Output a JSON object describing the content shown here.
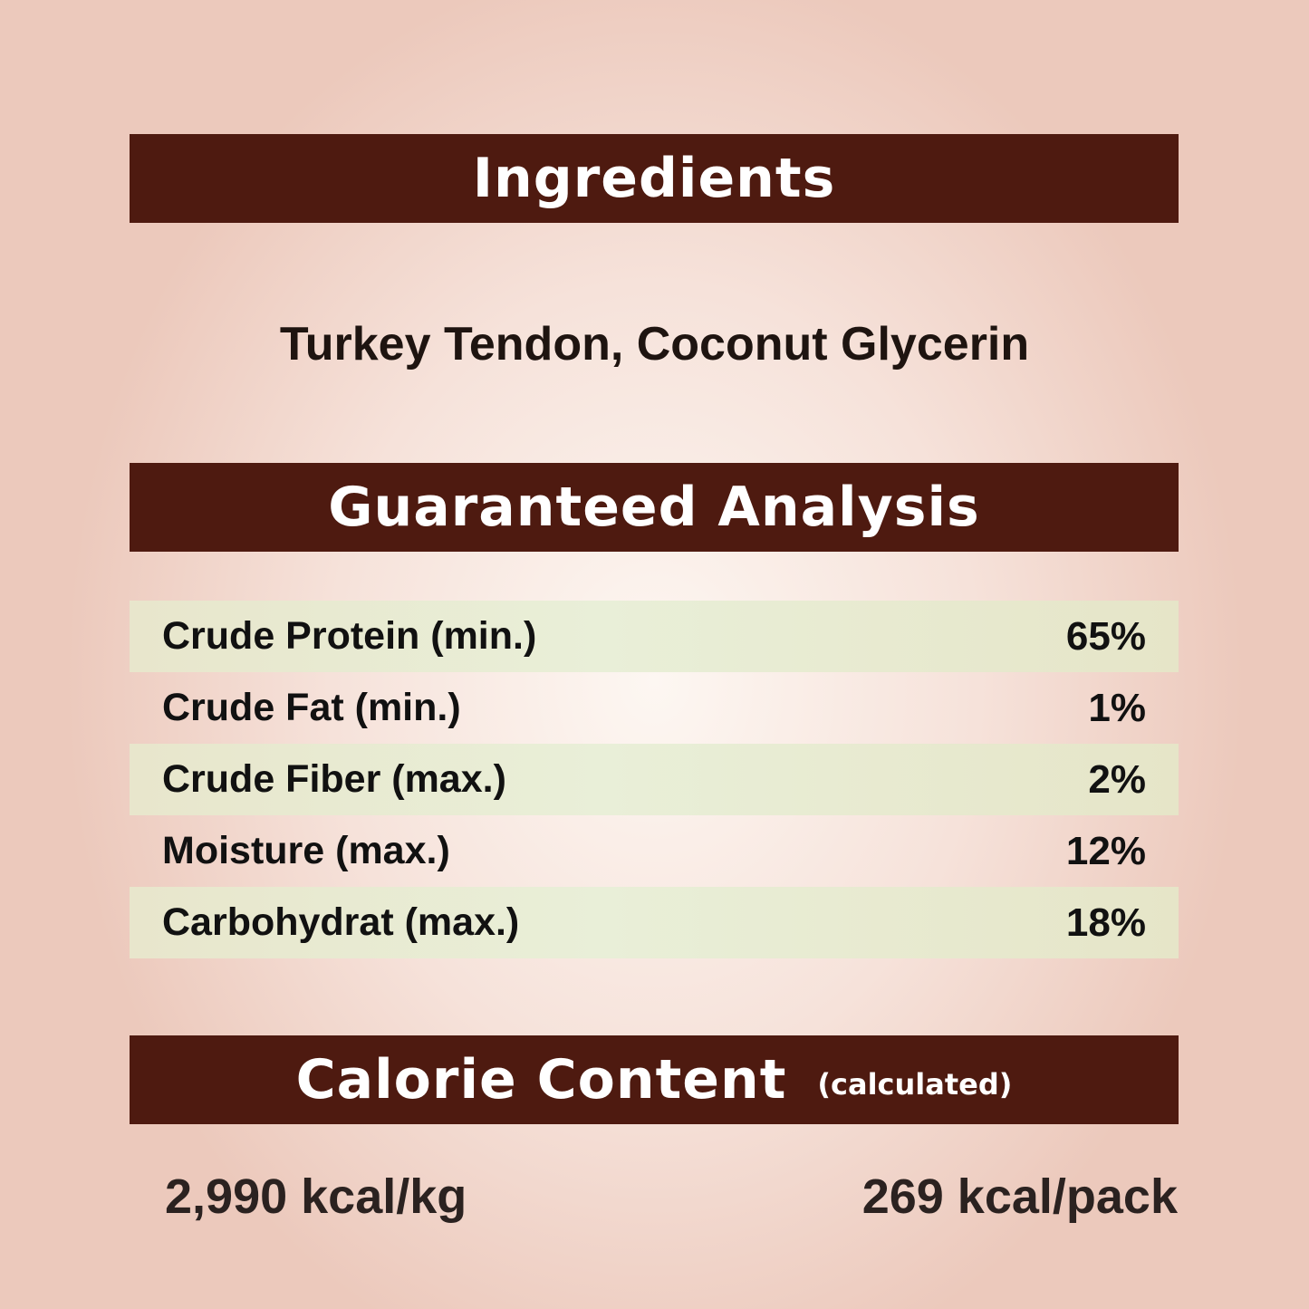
{
  "ingredients": {
    "heading": "Ingredients",
    "text": "Turkey Tendon, Coconut Glycerin"
  },
  "analysis": {
    "heading": "Guaranteed Analysis",
    "rows": [
      {
        "label": "Crude Protein (min.)",
        "value": "65%"
      },
      {
        "label": "Crude Fat (min.)",
        "value": "1%"
      },
      {
        "label": "Crude Fiber (max.)",
        "value": "2%"
      },
      {
        "label": "Moisture (max.)",
        "value": "12%"
      },
      {
        "label": "Carbohydrat (max.)",
        "value": "18%"
      }
    ]
  },
  "calorie": {
    "heading": "Calorie Content",
    "qualifier": "(calculated)",
    "per_kg": "2,990 kcal/kg",
    "per_pack": "269 kcal/pack"
  },
  "colors": {
    "banner": "#4e1a10",
    "row_stripe": "#e8ead0",
    "background": "#f6e2da"
  }
}
